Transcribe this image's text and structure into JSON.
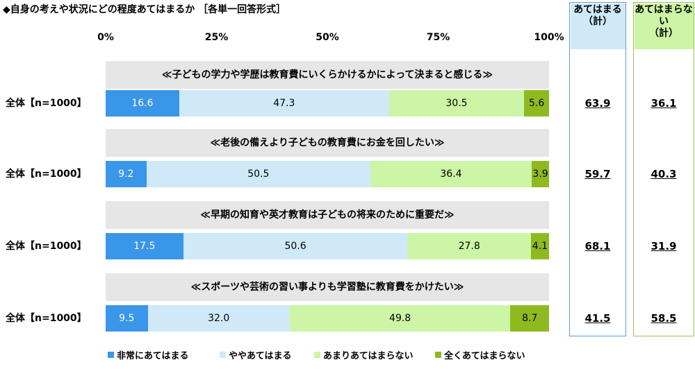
{
  "title": "◆自身の考えや状況にどの程度あてはまるか ［各単一回答形式］",
  "chart_data": {
    "type": "bar",
    "stacked": true,
    "orientation": "horizontal",
    "xlim": [
      0,
      100
    ],
    "ticks": [
      "0%",
      "25%",
      "50%",
      "75%",
      "100%"
    ],
    "tick_values": [
      0,
      25,
      50,
      75,
      100
    ],
    "legend_position": "bottom",
    "series": [
      {
        "name": "非常にあてはまる",
        "color": "#3a96e8",
        "label_color": "#ffffff"
      },
      {
        "name": "ややあてはまる",
        "color": "#cfe9f8",
        "label_color": "#000000"
      },
      {
        "name": "あまりあてはまらない",
        "color": "#ccf5a6",
        "label_color": "#000000"
      },
      {
        "name": "全くあてはまらない",
        "color": "#8fba1f",
        "label_color": "#000000"
      }
    ],
    "summary_headers": [
      {
        "label": "あてはまる\n（計）",
        "bg": "#cfe9f8",
        "border": "#5b9bd5"
      },
      {
        "label": "あてはまらない\n（計）",
        "bg": "#ccf5a6",
        "border": "#92c353"
      }
    ],
    "questions": [
      {
        "title": "≪子どもの学力や学歴は教育費にいくらかけるかによって決まると感じる≫",
        "row_label": "全体【n=1000】",
        "values": [
          16.6,
          47.3,
          30.5,
          5.6
        ],
        "labels": [
          "16.6",
          "47.3",
          "30.5",
          "5.6"
        ],
        "totals": [
          "63.9",
          "36.1"
        ]
      },
      {
        "title": "≪老後の備えより子どもの教育費にお金を回したい≫",
        "row_label": "全体【n=1000】",
        "values": [
          9.2,
          50.5,
          36.4,
          3.9
        ],
        "labels": [
          "9.2",
          "50.5",
          "36.4",
          "3.9"
        ],
        "totals": [
          "59.7",
          "40.3"
        ]
      },
      {
        "title": "≪早期の知育や英才教育は子どもの将来のために重要だ≫",
        "row_label": "全体【n=1000】",
        "values": [
          17.5,
          50.6,
          27.8,
          4.1
        ],
        "labels": [
          "17.5",
          "50.6",
          "27.8",
          "4.1"
        ],
        "totals": [
          "68.1",
          "31.9"
        ]
      },
      {
        "title": "≪スポーツや芸術の習い事よりも学習塾に教育費をかけたい≫",
        "row_label": "全体【n=1000】",
        "values": [
          9.5,
          32.0,
          49.8,
          8.7
        ],
        "labels": [
          "9.5",
          "32.0",
          "49.8",
          "8.7"
        ],
        "totals": [
          "41.5",
          "58.5"
        ]
      }
    ]
  }
}
